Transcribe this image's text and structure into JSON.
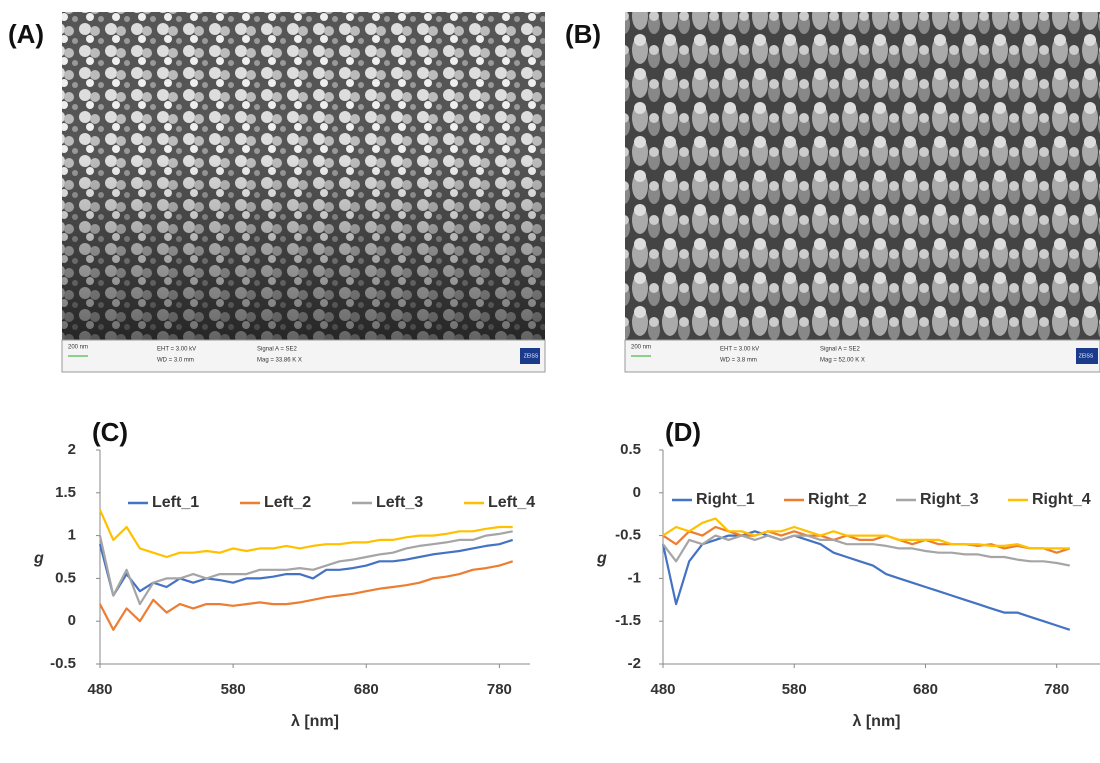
{
  "images": [
    {
      "label": "(A)",
      "scale_bar": "200 nm",
      "eht": "EHT = 3.00 kV",
      "wd": "WD = 3.0 mm",
      "signal": "Signal A = SE2",
      "mag": "Mag = 33.86 K X",
      "logo": "ZEISS"
    },
    {
      "label": "(B)",
      "scale_bar": "200 nm",
      "eht": "EHT = 3.00 kV",
      "wd": "WD = 3.8 mm",
      "signal": "Signal A = SE2",
      "mag": "Mag = 52.00 K X",
      "logo": "ZEISS"
    }
  ],
  "chart_data": [
    {
      "type": "line",
      "title": "(C)",
      "x_label": "λ [nm]",
      "y_label": "g",
      "x": [
        480,
        490,
        500,
        510,
        520,
        530,
        540,
        550,
        560,
        570,
        580,
        590,
        600,
        610,
        620,
        630,
        640,
        650,
        660,
        670,
        680,
        690,
        700,
        710,
        720,
        730,
        740,
        750,
        760,
        770,
        780,
        790
      ],
      "xlim": [
        480,
        803
      ],
      "xticks": [
        480,
        580,
        680,
        780
      ],
      "ylim": [
        -0.5,
        2
      ],
      "yticks": [
        -0.5,
        0,
        0.5,
        1,
        1.5,
        2
      ],
      "series": [
        {
          "name": "Left_1",
          "color": "#4472c4",
          "values": [
            0.9,
            0.3,
            0.55,
            0.35,
            0.45,
            0.4,
            0.5,
            0.45,
            0.5,
            0.48,
            0.45,
            0.5,
            0.5,
            0.52,
            0.55,
            0.55,
            0.5,
            0.6,
            0.6,
            0.62,
            0.65,
            0.7,
            0.7,
            0.72,
            0.75,
            0.78,
            0.8,
            0.82,
            0.85,
            0.88,
            0.9,
            0.95
          ]
        },
        {
          "name": "Left_2",
          "color": "#ed7d31",
          "values": [
            0.2,
            -0.1,
            0.15,
            0.0,
            0.25,
            0.1,
            0.2,
            0.15,
            0.2,
            0.2,
            0.18,
            0.2,
            0.22,
            0.2,
            0.2,
            0.22,
            0.25,
            0.28,
            0.3,
            0.32,
            0.35,
            0.38,
            0.4,
            0.42,
            0.45,
            0.5,
            0.52,
            0.55,
            0.6,
            0.62,
            0.65,
            0.7
          ]
        },
        {
          "name": "Left_3",
          "color": "#a5a5a5",
          "values": [
            1.0,
            0.3,
            0.6,
            0.2,
            0.45,
            0.5,
            0.5,
            0.55,
            0.5,
            0.55,
            0.55,
            0.55,
            0.6,
            0.6,
            0.6,
            0.62,
            0.6,
            0.65,
            0.7,
            0.72,
            0.75,
            0.78,
            0.8,
            0.85,
            0.88,
            0.9,
            0.92,
            0.95,
            0.95,
            1.0,
            1.02,
            1.05
          ]
        },
        {
          "name": "Left_4",
          "color": "#ffc000",
          "values": [
            1.3,
            0.95,
            1.1,
            0.85,
            0.8,
            0.75,
            0.8,
            0.8,
            0.82,
            0.8,
            0.85,
            0.82,
            0.85,
            0.85,
            0.88,
            0.85,
            0.88,
            0.9,
            0.9,
            0.92,
            0.92,
            0.95,
            0.95,
            0.98,
            1.0,
            1.0,
            1.02,
            1.05,
            1.05,
            1.08,
            1.1,
            1.1
          ]
        }
      ]
    },
    {
      "type": "line",
      "title": "(D)",
      "x_label": "λ [nm]",
      "y_label": "g",
      "x": [
        480,
        490,
        500,
        510,
        520,
        530,
        540,
        550,
        560,
        570,
        580,
        590,
        600,
        610,
        620,
        630,
        640,
        650,
        660,
        670,
        680,
        690,
        700,
        710,
        720,
        730,
        740,
        750,
        760,
        770,
        780,
        790
      ],
      "xlim": [
        480,
        813
      ],
      "xticks": [
        480,
        580,
        680,
        780
      ],
      "ylim": [
        -2,
        0.5
      ],
      "yticks": [
        0.5,
        0,
        -0.5,
        -1,
        -1.5,
        -2
      ],
      "series": [
        {
          "name": "Right_1",
          "color": "#4472c4",
          "values": [
            -0.6,
            -1.3,
            -0.8,
            -0.6,
            -0.55,
            -0.5,
            -0.5,
            -0.45,
            -0.5,
            -0.55,
            -0.5,
            -0.55,
            -0.6,
            -0.7,
            -0.75,
            -0.8,
            -0.85,
            -0.95,
            -1.0,
            -1.05,
            -1.1,
            -1.15,
            -1.2,
            -1.25,
            -1.3,
            -1.35,
            -1.4,
            -1.4,
            -1.45,
            -1.5,
            -1.55,
            -1.6
          ]
        },
        {
          "name": "Right_2",
          "color": "#ed7d31",
          "values": [
            -0.5,
            -0.6,
            -0.45,
            -0.5,
            -0.4,
            -0.45,
            -0.5,
            -0.5,
            -0.45,
            -0.5,
            -0.45,
            -0.5,
            -0.5,
            -0.55,
            -0.5,
            -0.55,
            -0.55,
            -0.5,
            -0.55,
            -0.6,
            -0.55,
            -0.6,
            -0.6,
            -0.6,
            -0.62,
            -0.6,
            -0.65,
            -0.62,
            -0.65,
            -0.65,
            -0.7,
            -0.65
          ]
        },
        {
          "name": "Right_3",
          "color": "#a5a5a5",
          "values": [
            -0.6,
            -0.8,
            -0.55,
            -0.6,
            -0.5,
            -0.55,
            -0.5,
            -0.55,
            -0.5,
            -0.55,
            -0.5,
            -0.5,
            -0.55,
            -0.55,
            -0.6,
            -0.6,
            -0.6,
            -0.62,
            -0.65,
            -0.65,
            -0.68,
            -0.7,
            -0.7,
            -0.72,
            -0.72,
            -0.75,
            -0.75,
            -0.78,
            -0.8,
            -0.8,
            -0.82,
            -0.85
          ]
        },
        {
          "name": "Right_4",
          "color": "#ffc000",
          "values": [
            -0.5,
            -0.4,
            -0.45,
            -0.35,
            -0.3,
            -0.45,
            -0.45,
            -0.5,
            -0.45,
            -0.45,
            -0.4,
            -0.45,
            -0.5,
            -0.45,
            -0.5,
            -0.5,
            -0.5,
            -0.5,
            -0.55,
            -0.55,
            -0.55,
            -0.55,
            -0.6,
            -0.6,
            -0.6,
            -0.62,
            -0.62,
            -0.6,
            -0.65,
            -0.65,
            -0.65,
            -0.65
          ]
        }
      ]
    }
  ]
}
